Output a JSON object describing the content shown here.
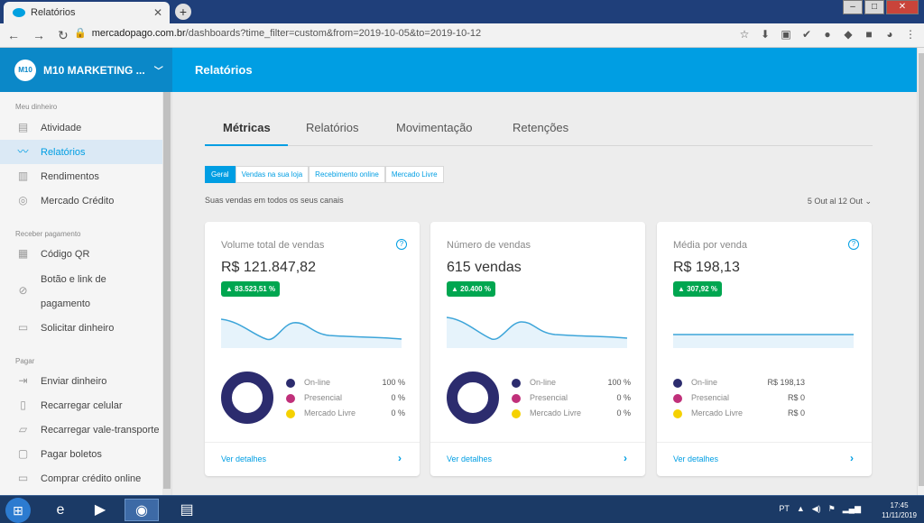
{
  "browser": {
    "tab_title": "Relatórios",
    "tab_close": "✕",
    "new_tab": "+",
    "url_domain": "mercadopago.com.br",
    "url_path": "/dashboards?time_filter=custom&from=2019-10-05&to=2019-10-12"
  },
  "header": {
    "account": "M10 MARKETING ...",
    "logo_text": "M10",
    "page_title": "Relatórios"
  },
  "sidebar": {
    "sections": [
      {
        "label": "Meu dinheiro"
      },
      {
        "label": "Receber pagamento"
      },
      {
        "label": "Pagar"
      }
    ],
    "items": [
      {
        "label": "Atividade",
        "icon": "activity-icon"
      },
      {
        "label": "Relatórios",
        "icon": "reports-icon"
      },
      {
        "label": "Rendimentos",
        "icon": "chart-icon"
      },
      {
        "label": "Mercado Crédito",
        "icon": "credit-icon"
      },
      {
        "label": "Código QR",
        "icon": "qr-icon"
      },
      {
        "label": "Botão e link de pagamento",
        "icon": "link-icon"
      },
      {
        "label": "Solicitar dinheiro",
        "icon": "request-icon"
      },
      {
        "label": "Enviar dinheiro",
        "icon": "send-icon"
      },
      {
        "label": "Recarregar celular",
        "icon": "phone-icon"
      },
      {
        "label": "Recarregar vale-transporte",
        "icon": "transport-icon"
      },
      {
        "label": "Pagar boletos",
        "icon": "bill-icon"
      },
      {
        "label": "Comprar crédito online",
        "icon": "card-icon"
      }
    ]
  },
  "tabs": [
    "Métricas",
    "Relatórios",
    "Movimentação",
    "Retenções"
  ],
  "filters": [
    "Geral",
    "Vendas na sua loja",
    "Recebimento online",
    "Mercado Livre"
  ],
  "subtitle": "Suas vendas em todos os seus canais",
  "date_range": "5 Out al 12 Out",
  "cards": [
    {
      "title": "Volume total de vendas",
      "value": "R$ 121.847,82",
      "badge": "▲ 83.523,51 %",
      "legend": [
        {
          "name": "On-line",
          "value": "100 %"
        },
        {
          "name": "Presencial",
          "value": "0 %"
        },
        {
          "name": "Mercado Livre",
          "value": "0 %"
        }
      ],
      "link": "Ver detalhes"
    },
    {
      "title": "Número de vendas",
      "value": "615 vendas",
      "badge": "▲ 20.400 %",
      "legend": [
        {
          "name": "On-line",
          "value": "100 %"
        },
        {
          "name": "Presencial",
          "value": "0 %"
        },
        {
          "name": "Mercado Livre",
          "value": "0 %"
        }
      ],
      "link": "Ver detalhes"
    },
    {
      "title": "Média por venda",
      "value": "R$ 198,13",
      "badge": "▲ 307,92 %",
      "legend": [
        {
          "name": "On-line",
          "value": "R$ 198,13"
        },
        {
          "name": "Presencial",
          "value": "R$ 0"
        },
        {
          "name": "Mercado Livre",
          "value": "R$ 0"
        }
      ],
      "link": "Ver detalhes"
    }
  ],
  "colors": {
    "accent": "#009ee3",
    "online": "#2c2c6e",
    "presencial": "#c0307a",
    "mercado_livre": "#f5d100",
    "badge": "#00a650"
  },
  "taskbar": {
    "language": "PT",
    "time": "17:45",
    "date": "11/11/2019"
  }
}
